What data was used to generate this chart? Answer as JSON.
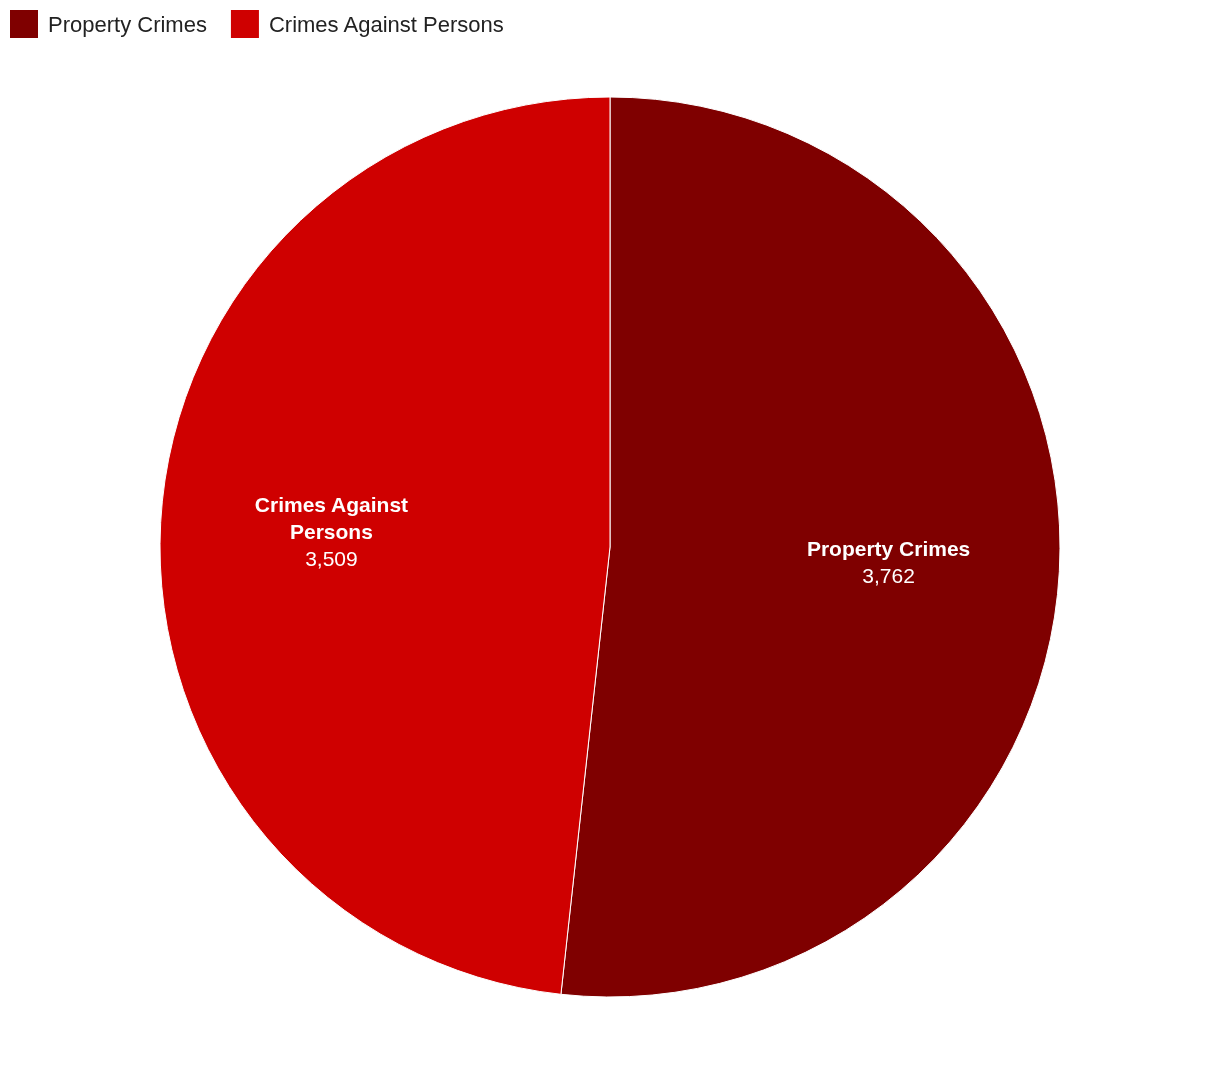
{
  "chart_data": {
    "type": "pie",
    "categories": [
      "Property Crimes",
      "Crimes Against Persons"
    ],
    "values": [
      3762,
      3509
    ],
    "colors": [
      "#7f0000",
      "#cf0000"
    ],
    "value_labels": [
      "3,762",
      "3,509"
    ],
    "legend": "top left"
  }
}
